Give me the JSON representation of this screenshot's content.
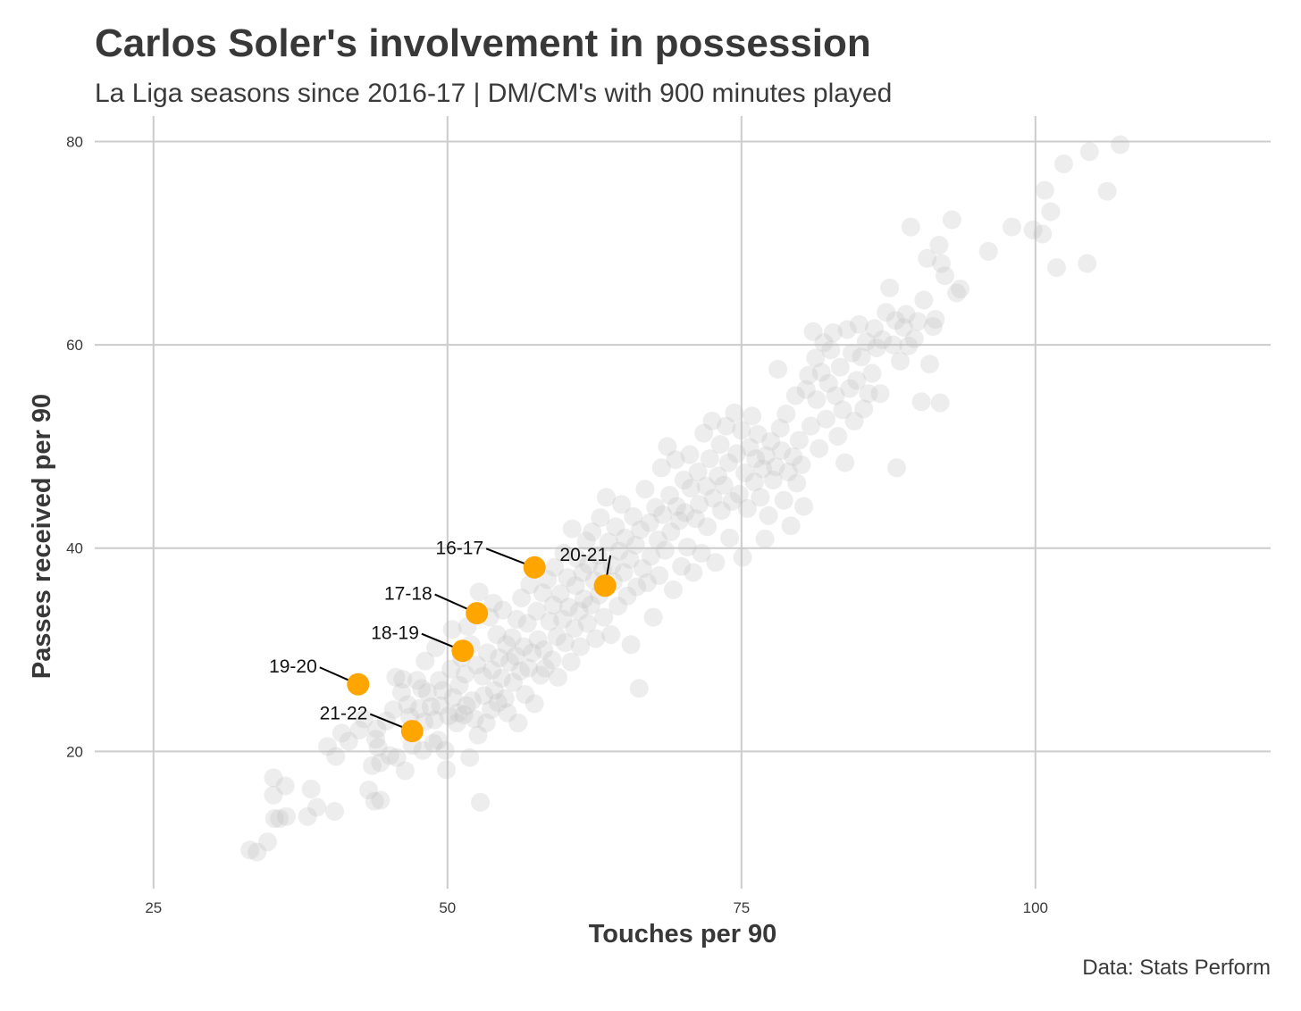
{
  "title": "Carlos Soler's involvement in possession",
  "subtitle": "La Liga seasons since 2016-17 | DM/CM's with 900 minutes played",
  "caption": "Data: Stats Perform",
  "colors": {
    "background": "#ffffff",
    "grid": "#cccccc",
    "points": "#bdbdbd",
    "highlight": "#ffa500",
    "label_line": "#000000"
  },
  "chart_data": {
    "type": "scatter",
    "xlabel": "Touches per 90",
    "ylabel": "Passes received per 90",
    "xlim": [
      20,
      120
    ],
    "ylim": [
      6.5,
      82.5
    ],
    "x_ticks": [
      25,
      50,
      75,
      100
    ],
    "y_ticks": [
      20,
      40,
      60,
      80
    ],
    "grid": true,
    "legend": "none",
    "highlight_series": {
      "name": "Carlos Soler",
      "points": [
        {
          "label": "16-17",
          "x": 57.4,
          "y": 38.1
        },
        {
          "label": "20-21",
          "x": 63.4,
          "y": 36.3
        },
        {
          "label": "17-18",
          "x": 52.5,
          "y": 33.6
        },
        {
          "label": "18-19",
          "x": 51.3,
          "y": 29.9
        },
        {
          "label": "19-20",
          "x": 42.4,
          "y": 26.6
        },
        {
          "label": "21-22",
          "x": 47.0,
          "y": 22.0
        }
      ]
    },
    "background_points": [
      [
        33.2,
        10.3
      ],
      [
        33.8,
        10.1
      ],
      [
        34.7,
        11.1
      ],
      [
        35.2,
        17.4
      ],
      [
        35.2,
        15.7
      ],
      [
        35.3,
        13.4
      ],
      [
        35.7,
        13.4
      ],
      [
        36.2,
        16.6
      ],
      [
        36.3,
        13.6
      ],
      [
        38.1,
        13.6
      ],
      [
        38.4,
        16.3
      ],
      [
        38.9,
        14.5
      ],
      [
        39.8,
        20.5
      ],
      [
        40.4,
        14.1
      ],
      [
        40.5,
        19.5
      ],
      [
        41.0,
        21.8
      ],
      [
        41.6,
        21.0
      ],
      [
        42.5,
        22.1
      ],
      [
        42.9,
        23.2
      ],
      [
        43.3,
        16.2
      ],
      [
        43.6,
        18.6
      ],
      [
        43.8,
        15.1
      ],
      [
        43.9,
        21.2
      ],
      [
        44.0,
        22.2
      ],
      [
        44.1,
        20.4
      ],
      [
        44.3,
        15.2
      ],
      [
        44.3,
        18.9
      ],
      [
        44.8,
        23.0
      ],
      [
        45.1,
        19.6
      ],
      [
        45.4,
        24.1
      ],
      [
        45.6,
        27.3
      ],
      [
        45.7,
        19.4
      ],
      [
        46.1,
        25.8
      ],
      [
        46.2,
        27.1
      ],
      [
        46.4,
        18.1
      ],
      [
        46.6,
        24.6
      ],
      [
        46.8,
        23.4
      ],
      [
        47.0,
        20.6
      ],
      [
        47.1,
        21.9
      ],
      [
        47.4,
        27.0
      ],
      [
        47.6,
        24.2
      ],
      [
        47.8,
        26.2
      ],
      [
        47.9,
        20.1
      ],
      [
        48.0,
        22.9
      ],
      [
        48.1,
        28.9
      ],
      [
        48.3,
        25.8
      ],
      [
        48.6,
        24.4
      ],
      [
        48.8,
        20.8
      ],
      [
        48.9,
        23.1
      ],
      [
        49.0,
        30.2
      ],
      [
        49.2,
        21.1
      ],
      [
        49.3,
        27.0
      ],
      [
        49.4,
        24.5
      ],
      [
        49.6,
        26.0
      ],
      [
        49.8,
        20.1
      ],
      [
        49.9,
        18.2
      ],
      [
        50.1,
        23.5
      ],
      [
        50.3,
        28.1
      ],
      [
        50.4,
        32.0
      ],
      [
        50.5,
        25.3
      ],
      [
        50.8,
        22.8
      ],
      [
        50.9,
        23.8
      ],
      [
        51.0,
        26.5
      ],
      [
        51.2,
        29.2
      ],
      [
        51.4,
        23.6
      ],
      [
        51.5,
        27.6
      ],
      [
        51.6,
        24.5
      ],
      [
        51.7,
        32.3
      ],
      [
        51.9,
        19.4
      ],
      [
        52.0,
        30.5
      ],
      [
        52.1,
        25.0
      ],
      [
        52.3,
        23.2
      ],
      [
        52.5,
        28.5
      ],
      [
        52.6,
        21.6
      ],
      [
        52.7,
        35.7
      ],
      [
        52.8,
        15.0
      ],
      [
        53.0,
        27.4
      ],
      [
        53.1,
        25.5
      ],
      [
        53.3,
        22.8
      ],
      [
        53.4,
        29.7
      ],
      [
        53.6,
        33.2
      ],
      [
        53.7,
        24.1
      ],
      [
        53.8,
        28.0
      ],
      [
        53.9,
        34.6
      ],
      [
        54.0,
        26.0
      ],
      [
        54.2,
        31.5
      ],
      [
        54.3,
        24.8
      ],
      [
        54.4,
        29.2
      ],
      [
        54.6,
        27.2
      ],
      [
        54.7,
        33.9
      ],
      [
        54.9,
        25.2
      ],
      [
        55.0,
        30.5
      ],
      [
        55.1,
        23.8
      ],
      [
        55.3,
        28.8
      ],
      [
        55.5,
        31.2
      ],
      [
        55.6,
        26.8
      ],
      [
        55.8,
        29.4
      ],
      [
        55.9,
        33.0
      ],
      [
        56.0,
        22.8
      ],
      [
        56.2,
        27.9
      ],
      [
        56.3,
        35.1
      ],
      [
        56.5,
        30.3
      ],
      [
        56.6,
        25.6
      ],
      [
        56.8,
        32.6
      ],
      [
        56.9,
        28.2
      ],
      [
        57.0,
        36.4
      ],
      [
        57.2,
        29.7
      ],
      [
        57.4,
        24.7
      ],
      [
        57.6,
        33.8
      ],
      [
        57.7,
        31.0
      ],
      [
        57.9,
        27.5
      ],
      [
        58.1,
        35.6
      ],
      [
        58.2,
        30.0
      ],
      [
        58.3,
        28.2
      ],
      [
        58.5,
        36.9
      ],
      [
        58.7,
        32.8
      ],
      [
        58.9,
        29.0
      ],
      [
        59.0,
        34.4
      ],
      [
        59.1,
        38.1
      ],
      [
        59.3,
        31.3
      ],
      [
        59.4,
        27.3
      ],
      [
        59.6,
        35.5
      ],
      [
        59.8,
        33.0
      ],
      [
        59.9,
        39.5
      ],
      [
        60.0,
        30.7
      ],
      [
        60.2,
        37.1
      ],
      [
        60.3,
        34.2
      ],
      [
        60.5,
        28.8
      ],
      [
        60.6,
        41.9
      ],
      [
        60.8,
        32.1
      ],
      [
        60.9,
        36.3
      ],
      [
        61.0,
        39.0
      ],
      [
        61.2,
        33.8
      ],
      [
        61.3,
        30.3
      ],
      [
        61.5,
        37.6
      ],
      [
        61.6,
        35.0
      ],
      [
        61.8,
        40.7
      ],
      [
        61.9,
        32.6
      ],
      [
        62.0,
        38.4
      ],
      [
        62.2,
        34.4
      ],
      [
        62.3,
        41.6
      ],
      [
        62.5,
        36.8
      ],
      [
        62.6,
        31.1
      ],
      [
        62.8,
        39.3
      ],
      [
        62.9,
        35.4
      ],
      [
        63.0,
        43.0
      ],
      [
        63.2,
        37.9
      ],
      [
        63.3,
        33.2
      ],
      [
        63.5,
        45.0
      ],
      [
        63.7,
        40.6
      ],
      [
        63.9,
        31.5
      ],
      [
        64.0,
        38.3
      ],
      [
        64.1,
        36.7
      ],
      [
        64.3,
        42.1
      ],
      [
        64.5,
        34.3
      ],
      [
        64.6,
        39.7
      ],
      [
        64.8,
        44.3
      ],
      [
        65.0,
        37.6
      ],
      [
        65.1,
        41.0
      ],
      [
        65.3,
        35.3
      ],
      [
        65.5,
        38.9
      ],
      [
        65.6,
        30.5
      ],
      [
        65.8,
        43.1
      ],
      [
        66.0,
        40.3
      ],
      [
        66.1,
        36.2
      ],
      [
        66.3,
        26.2
      ],
      [
        66.4,
        41.8
      ],
      [
        66.6,
        38.0
      ],
      [
        66.8,
        45.8
      ],
      [
        67.0,
        36.6
      ],
      [
        67.2,
        42.5
      ],
      [
        67.3,
        39.2
      ],
      [
        67.5,
        33.2
      ],
      [
        67.7,
        44.0
      ],
      [
        67.9,
        40.8
      ],
      [
        68.0,
        37.3
      ],
      [
        68.2,
        47.9
      ],
      [
        68.3,
        43.3
      ],
      [
        68.5,
        39.8
      ],
      [
        68.7,
        50.0
      ],
      [
        68.9,
        45.2
      ],
      [
        69.0,
        41.6
      ],
      [
        69.2,
        35.9
      ],
      [
        69.4,
        48.7
      ],
      [
        69.5,
        44.1
      ],
      [
        69.7,
        42.7
      ],
      [
        69.9,
        38.2
      ],
      [
        70.1,
        46.7
      ],
      [
        70.2,
        43.5
      ],
      [
        70.4,
        40.1
      ],
      [
        70.6,
        49.2
      ],
      [
        70.7,
        45.9
      ],
      [
        70.9,
        37.6
      ],
      [
        71.1,
        42.9
      ],
      [
        71.3,
        47.5
      ],
      [
        71.4,
        44.3
      ],
      [
        71.6,
        39.5
      ],
      [
        71.8,
        51.3
      ],
      [
        72.0,
        46.1
      ],
      [
        72.1,
        42.1
      ],
      [
        72.3,
        48.8
      ],
      [
        72.5,
        52.5
      ],
      [
        72.6,
        44.9
      ],
      [
        72.8,
        38.6
      ],
      [
        73.0,
        47.1
      ],
      [
        73.2,
        50.2
      ],
      [
        73.3,
        43.7
      ],
      [
        73.5,
        46.2
      ],
      [
        73.7,
        52.0
      ],
      [
        73.9,
        48.4
      ],
      [
        74.0,
        41.0
      ],
      [
        74.2,
        44.6
      ],
      [
        74.4,
        53.3
      ],
      [
        74.6,
        49.3
      ],
      [
        74.8,
        45.3
      ],
      [
        75.0,
        51.6
      ],
      [
        75.1,
        39.1
      ],
      [
        75.3,
        47.4
      ],
      [
        75.5,
        43.9
      ],
      [
        75.7,
        49.9
      ],
      [
        75.9,
        53.0
      ],
      [
        76.1,
        46.5
      ],
      [
        76.2,
        48.8
      ],
      [
        76.4,
        51.2
      ],
      [
        76.6,
        45.0
      ],
      [
        76.8,
        47.8
      ],
      [
        77.0,
        40.9
      ],
      [
        77.1,
        49.1
      ],
      [
        77.3,
        43.2
      ],
      [
        77.5,
        50.5
      ],
      [
        77.7,
        46.7
      ],
      [
        77.9,
        48.0
      ],
      [
        78.1,
        57.6
      ],
      [
        78.3,
        51.8
      ],
      [
        78.4,
        49.6
      ],
      [
        78.6,
        44.7
      ],
      [
        78.8,
        53.2
      ],
      [
        79.0,
        47.5
      ],
      [
        79.2,
        42.2
      ],
      [
        79.4,
        49.0
      ],
      [
        79.6,
        55.0
      ],
      [
        79.7,
        46.4
      ],
      [
        79.9,
        50.6
      ],
      [
        80.1,
        48.2
      ],
      [
        80.3,
        44.1
      ],
      [
        80.5,
        55.6
      ],
      [
        80.7,
        57.0
      ],
      [
        80.9,
        52.0
      ],
      [
        81.1,
        61.3
      ],
      [
        81.3,
        58.7
      ],
      [
        81.4,
        54.6
      ],
      [
        81.6,
        49.8
      ],
      [
        81.8,
        57.3
      ],
      [
        82.0,
        60.2
      ],
      [
        82.2,
        52.7
      ],
      [
        82.4,
        56.2
      ],
      [
        82.6,
        59.5
      ],
      [
        82.8,
        61.2
      ],
      [
        83.0,
        55.0
      ],
      [
        83.2,
        51.0
      ],
      [
        83.4,
        57.8
      ],
      [
        83.6,
        53.6
      ],
      [
        83.8,
        48.4
      ],
      [
        84.0,
        61.5
      ],
      [
        84.2,
        55.7
      ],
      [
        84.4,
        59.2
      ],
      [
        84.6,
        52.5
      ],
      [
        84.8,
        56.5
      ],
      [
        85.0,
        62.0
      ],
      [
        85.2,
        58.8
      ],
      [
        85.4,
        53.7
      ],
      [
        85.6,
        60.3
      ],
      [
        85.8,
        55.2
      ],
      [
        86.1,
        57.2
      ],
      [
        86.3,
        61.6
      ],
      [
        86.5,
        59.7
      ],
      [
        86.8,
        55.2
      ],
      [
        87.0,
        60.5
      ],
      [
        87.3,
        63.2
      ],
      [
        87.6,
        65.6
      ],
      [
        87.9,
        60.0
      ],
      [
        88.1,
        62.4
      ],
      [
        88.2,
        47.9
      ],
      [
        88.5,
        58.4
      ],
      [
        88.8,
        61.7
      ],
      [
        89.0,
        63.0
      ],
      [
        89.2,
        59.9
      ],
      [
        89.4,
        71.6
      ],
      [
        89.7,
        60.6
      ],
      [
        90.0,
        62.3
      ],
      [
        90.3,
        54.4
      ],
      [
        90.5,
        64.4
      ],
      [
        90.8,
        68.5
      ],
      [
        91.0,
        58.1
      ],
      [
        91.3,
        61.8
      ],
      [
        91.5,
        62.5
      ],
      [
        91.8,
        69.8
      ],
      [
        91.9,
        54.3
      ],
      [
        92.0,
        68.0
      ],
      [
        92.3,
        66.8
      ],
      [
        92.9,
        72.3
      ],
      [
        93.3,
        65.1
      ],
      [
        93.6,
        65.5
      ],
      [
        96.0,
        69.2
      ],
      [
        98.0,
        71.6
      ],
      [
        99.8,
        71.3
      ],
      [
        100.6,
        70.9
      ],
      [
        100.8,
        75.2
      ],
      [
        101.3,
        73.1
      ],
      [
        101.8,
        67.6
      ],
      [
        102.4,
        77.8
      ],
      [
        104.4,
        68.0
      ],
      [
        104.6,
        79.0
      ],
      [
        106.1,
        75.1
      ],
      [
        107.2,
        79.7
      ]
    ]
  }
}
